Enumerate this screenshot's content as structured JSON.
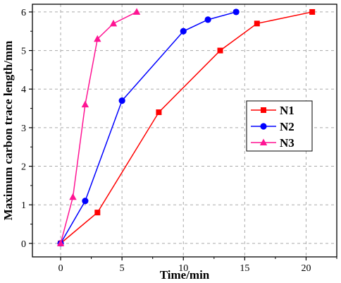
{
  "chart_data": {
    "type": "line",
    "xlabel": "Time/min",
    "ylabel": "Maximum carbon trace length/mm",
    "xlim": [
      -2.3,
      22.5
    ],
    "ylim": [
      -0.35,
      6.2
    ],
    "xticks": [
      0,
      5,
      10,
      15,
      20
    ],
    "yticks": [
      0,
      1,
      2,
      3,
      4,
      5,
      6
    ],
    "x_tick_labels": [
      "0",
      "5",
      "10",
      "15",
      "20"
    ],
    "y_tick_labels": [
      "0",
      "1",
      "2",
      "3",
      "4",
      "5",
      "6"
    ],
    "grid": "dashed, at major ticks",
    "legend_position": "center-right",
    "series": [
      {
        "name": "N1",
        "color": "#ff0000",
        "marker": "square",
        "x": [
          0,
          3,
          8,
          13,
          16,
          20.5
        ],
        "y": [
          0,
          0.8,
          3.4,
          5.0,
          5.7,
          6.0
        ]
      },
      {
        "name": "N2",
        "color": "#0000ff",
        "marker": "circle",
        "x": [
          0,
          2,
          5,
          10,
          12,
          14.3
        ],
        "y": [
          0,
          1.1,
          3.7,
          5.5,
          5.8,
          6.0
        ]
      },
      {
        "name": "N3",
        "color": "#ff1493",
        "marker": "triangle",
        "x": [
          0,
          1,
          2,
          3,
          4.3,
          6.2
        ],
        "y": [
          0,
          1.2,
          3.6,
          5.3,
          5.7,
          6.0
        ]
      }
    ]
  }
}
